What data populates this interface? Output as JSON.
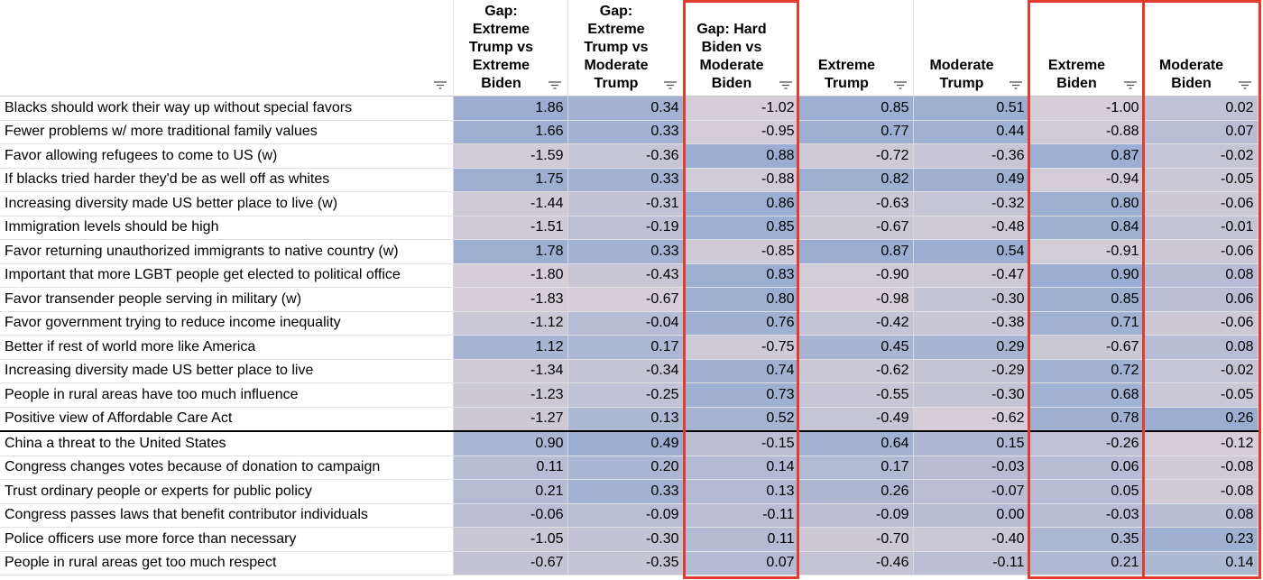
{
  "colors": {
    "positive": "#9baed1",
    "negative": "#d5cdd7",
    "accent": "#e33b2e"
  },
  "columns": [
    {
      "header": "",
      "icon": "filter-icon"
    },
    {
      "header": "Gap:\nExtreme\nTrump vs\nExtreme\nBiden",
      "icon": "filter-icon"
    },
    {
      "header": "Gap:\nExtreme\nTrump vs\nModerate\nTrump",
      "icon": "filter-icon"
    },
    {
      "header": "Gap: Hard\nBiden vs\nModerate\nBiden",
      "icon": "filter-icon"
    },
    {
      "header": "Extreme\nTrump",
      "icon": "filter-icon"
    },
    {
      "header": "Moderate\nTrump",
      "icon": "filter-icon"
    },
    {
      "header": "Extreme\nBiden",
      "icon": "filter-icon"
    },
    {
      "header": "Moderate\nBiden",
      "icon": "filter-icon"
    }
  ],
  "rows": [
    {
      "label": "Blacks should work their way up without special favors",
      "values": [
        "1.86",
        "0.34",
        "-1.02",
        "0.85",
        "0.51",
        "-1.00",
        "0.02"
      ]
    },
    {
      "label": "Fewer problems w/ more traditional family values",
      "values": [
        "1.66",
        "0.33",
        "-0.95",
        "0.77",
        "0.44",
        "-0.88",
        "0.07"
      ]
    },
    {
      "label": "Favor allowing refugees to come to US (w)",
      "values": [
        "-1.59",
        "-0.36",
        "0.88",
        "-0.72",
        "-0.36",
        "0.87",
        "-0.02"
      ]
    },
    {
      "label": "If blacks tried harder they'd be as well off as whites",
      "values": [
        "1.75",
        "0.33",
        "-0.88",
        "0.82",
        "0.49",
        "-0.94",
        "-0.05"
      ]
    },
    {
      "label": "Increasing diversity made US better place to live (w)",
      "values": [
        "-1.44",
        "-0.31",
        "0.86",
        "-0.63",
        "-0.32",
        "0.80",
        "-0.06"
      ]
    },
    {
      "label": "Immigration levels should be high",
      "values": [
        "-1.51",
        "-0.19",
        "0.85",
        "-0.67",
        "-0.48",
        "0.84",
        "-0.01"
      ]
    },
    {
      "label": "Favor returning unauthorized immigrants to native country (w)",
      "values": [
        "1.78",
        "0.33",
        "-0.85",
        "0.87",
        "0.54",
        "-0.91",
        "-0.06"
      ]
    },
    {
      "label": "Important that more LGBT people get elected to political office",
      "values": [
        "-1.80",
        "-0.43",
        "0.83",
        "-0.90",
        "-0.47",
        "0.90",
        "0.08"
      ]
    },
    {
      "label": "Favor transender people serving in military (w)",
      "values": [
        "-1.83",
        "-0.67",
        "0.80",
        "-0.98",
        "-0.30",
        "0.85",
        "0.06"
      ]
    },
    {
      "label": "Favor government trying to reduce income inequality",
      "values": [
        "-1.12",
        "-0.04",
        "0.76",
        "-0.42",
        "-0.38",
        "0.71",
        "-0.06"
      ]
    },
    {
      "label": "Better if rest of world more like America",
      "values": [
        "1.12",
        "0.17",
        "-0.75",
        "0.45",
        "0.29",
        "-0.67",
        "0.08"
      ]
    },
    {
      "label": "Increasing diversity made US better place to live",
      "values": [
        "-1.34",
        "-0.34",
        "0.74",
        "-0.62",
        "-0.29",
        "0.72",
        "-0.02"
      ]
    },
    {
      "label": "People in rural areas have too much influence",
      "values": [
        "-1.23",
        "-0.25",
        "0.73",
        "-0.55",
        "-0.30",
        "0.68",
        "-0.05"
      ]
    },
    {
      "label": "Positive view of Affordable Care Act",
      "values": [
        "-1.27",
        "0.13",
        "0.52",
        "-0.49",
        "-0.62",
        "0.78",
        "0.26"
      ]
    },
    {
      "label": "China a threat to the United States",
      "values": [
        "0.90",
        "0.49",
        "-0.15",
        "0.64",
        "0.15",
        "-0.26",
        "-0.12"
      ]
    },
    {
      "label": "Congress changes votes because of donation to campaign",
      "values": [
        "0.11",
        "0.20",
        "0.14",
        "0.17",
        "-0.03",
        "0.06",
        "-0.08"
      ]
    },
    {
      "label": "Trust ordinary people or experts for public policy",
      "values": [
        "0.21",
        "0.33",
        "0.13",
        "0.26",
        "-0.07",
        "0.05",
        "-0.08"
      ]
    },
    {
      "label": "Congress passes laws that benefit contributor individuals",
      "values": [
        "-0.06",
        "-0.09",
        "-0.11",
        "-0.09",
        "0.00",
        "-0.03",
        "0.08"
      ]
    },
    {
      "label": "Police officers use more force than necessary",
      "values": [
        "-1.05",
        "-0.30",
        "0.11",
        "-0.70",
        "-0.40",
        "0.35",
        "0.23"
      ]
    },
    {
      "label": "People in rural areas get too much respect",
      "values": [
        "-0.67",
        "-0.35",
        "0.07",
        "-0.46",
        "-0.11",
        "0.21",
        "0.14"
      ]
    }
  ],
  "highlighted_columns": [
    "Gap: Hard Biden vs Moderate Biden",
    "Extreme Biden",
    "Moderate Biden"
  ]
}
